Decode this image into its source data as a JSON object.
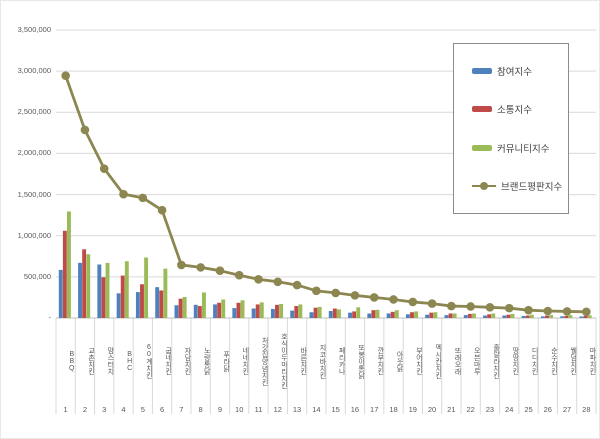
{
  "chart_data": {
    "type": "combo",
    "title": "",
    "description": "Korean chicken brand reputation index chart: grouped bars for participation, communication and community indices plus a line for total brand reputation index, ranked 1-28",
    "categories": [
      "BBQ",
      "교촌치킨",
      "맘스터치",
      "BHC",
      "60계치킨",
      "굽네치킨",
      "자담치킨",
      "노랑통닭",
      "푸라닭",
      "네네치킨",
      "처갓집양념치킨",
      "호식이두마리치킨",
      "바른치킨",
      "지코바치킨",
      "페리카나",
      "또봉이통닭",
      "깐부치킨",
      "아웃닭",
      "부어치킨",
      "멕시칸치킨",
      "또래오래",
      "오븐마루",
      "훌랄라치킨",
      "땅땅치킨",
      "디디치킨",
      "순수치킨",
      "웰덤치킨",
      "마파치킨"
    ],
    "ranks": [
      "1",
      "2",
      "3",
      "4",
      "5",
      "6",
      "7",
      "8",
      "9",
      "10",
      "11",
      "12",
      "13",
      "14",
      "15",
      "16",
      "17",
      "18",
      "19",
      "20",
      "21",
      "22",
      "23",
      "24",
      "25",
      "26",
      "27",
      "28"
    ],
    "series": [
      {
        "name": "참여지수",
        "type": "bar",
        "color": "#4F81BD",
        "values": [
          585000,
          670000,
          650000,
          300000,
          315000,
          375000,
          155000,
          160000,
          165000,
          120000,
          115000,
          110000,
          90000,
          70000,
          85000,
          65000,
          55000,
          55000,
          45000,
          40000,
          35000,
          35000,
          30000,
          30000,
          25000,
          20000,
          20000,
          18000
        ]
      },
      {
        "name": "소통지수",
        "type": "bar",
        "color": "#BE4B48",
        "values": [
          1060000,
          835000,
          495000,
          515000,
          410000,
          335000,
          235000,
          145000,
          185000,
          185000,
          165000,
          160000,
          145000,
          125000,
          115000,
          80000,
          95000,
          75000,
          70000,
          65000,
          55000,
          50000,
          45000,
          40000,
          30000,
          30000,
          25000,
          25000
        ]
      },
      {
        "name": "커뮤니티지수",
        "type": "bar",
        "color": "#9BBB59",
        "values": [
          1295000,
          775000,
          670000,
          690000,
          735000,
          600000,
          255000,
          310000,
          225000,
          215000,
          190000,
          170000,
          165000,
          135000,
          105000,
          130000,
          100000,
          95000,
          80000,
          70000,
          55000,
          55000,
          55000,
          50000,
          40000,
          35000,
          35000,
          32000
        ]
      },
      {
        "name": "브랜드평판지수",
        "type": "line",
        "color": "#8C8751",
        "values": [
          2945000,
          2285000,
          1815000,
          1505000,
          1460000,
          1310000,
          645000,
          615000,
          575000,
          520000,
          470000,
          440000,
          400000,
          330000,
          305000,
          275000,
          250000,
          225000,
          195000,
          175000,
          145000,
          140000,
          130000,
          120000,
          95000,
          85000,
          80000,
          75000
        ]
      }
    ],
    "y_axis": {
      "min": 0,
      "max": 3500000,
      "step": 500000,
      "tick_labels": [
        "-",
        "500,000",
        "1,000,000",
        "1,500,000",
        "2,000,000",
        "2,500,000",
        "3,000,000",
        "3,500,000"
      ]
    },
    "x_axis": {
      "label_orientation": "vertical",
      "rank_row": true
    },
    "grid": true,
    "legend_position": "top-right",
    "colors": {
      "background": "#ffffff",
      "gridline": "#d9d9d9",
      "axis_line": "#bfbfbf",
      "separator": "#d9d9d9",
      "tick_text": "#595959",
      "legend_border": "#8c8c8c",
      "legend_text": "#404040"
    }
  }
}
